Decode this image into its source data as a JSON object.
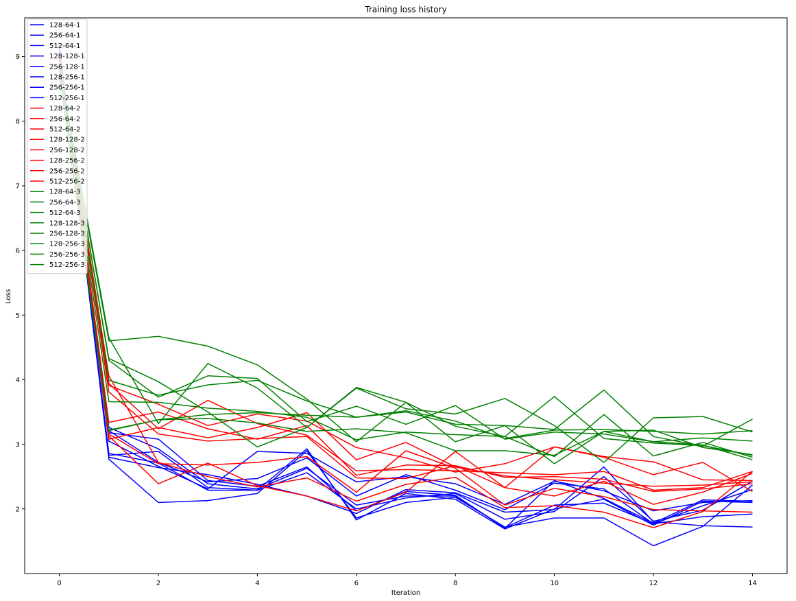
{
  "chart_data": {
    "type": "line",
    "title": "Training loss history",
    "xlabel": "Iteration",
    "ylabel": "Loss",
    "xlim": [
      -0.7,
      14.7
    ],
    "ylim": [
      1.0,
      9.6
    ],
    "x_ticks": [
      0,
      2,
      4,
      6,
      8,
      10,
      12,
      14
    ],
    "y_ticks": [
      2,
      3,
      4,
      5,
      6,
      7,
      8,
      9
    ],
    "grid": false,
    "legend_position": "top-left",
    "x": [
      0,
      1,
      2,
      3,
      4,
      5,
      6,
      7,
      8,
      9,
      10,
      11,
      12,
      13,
      14
    ],
    "colors": {
      "blue": "#0000ff",
      "red": "#ff0000",
      "green": "#008000"
    },
    "series": [
      {
        "name": "128-64-1",
        "color": "blue",
        "values": [
          9.18,
          2.77,
          2.1,
          2.13,
          2.24,
          2.9,
          1.86,
          2.1,
          2.18,
          1.72,
          1.86,
          1.86,
          1.43,
          1.73,
          2.37
        ]
      },
      {
        "name": "256-64-1",
        "color": "blue",
        "values": [
          9.16,
          2.83,
          2.89,
          2.33,
          2.29,
          2.93,
          1.83,
          2.24,
          2.15,
          1.69,
          2.0,
          2.15,
          1.75,
          2.12,
          2.1
        ]
      },
      {
        "name": "512-64-1",
        "color": "blue",
        "values": [
          9.14,
          2.8,
          2.64,
          2.53,
          2.38,
          2.2,
          1.93,
          2.3,
          2.25,
          1.95,
          1.99,
          2.65,
          1.8,
          1.74,
          1.72
        ]
      },
      {
        "name": "128-128-1",
        "color": "blue",
        "values": [
          9.12,
          2.86,
          2.71,
          2.29,
          2.29,
          2.56,
          2.0,
          2.17,
          2.24,
          1.84,
          1.96,
          2.5,
          1.81,
          1.98,
          2.43
        ]
      },
      {
        "name": "256-128-1",
        "color": "blue",
        "values": [
          9.1,
          3.05,
          2.66,
          2.31,
          2.89,
          2.86,
          2.42,
          2.5,
          2.39,
          2.07,
          2.43,
          2.28,
          1.97,
          2.1,
          2.13
        ]
      },
      {
        "name": "128-256-1",
        "color": "blue",
        "values": [
          9.08,
          3.21,
          2.72,
          2.42,
          2.47,
          2.79,
          2.2,
          2.53,
          2.29,
          1.99,
          2.4,
          2.31,
          1.77,
          2.05,
          2.3
        ]
      },
      {
        "name": "256-256-1",
        "color": "blue",
        "values": [
          9.06,
          3.26,
          2.93,
          2.39,
          2.31,
          2.63,
          2.06,
          2.2,
          2.2,
          1.71,
          2.06,
          2.09,
          1.77,
          1.88,
          1.92
        ]
      },
      {
        "name": "512-256-1",
        "color": "blue",
        "values": [
          9.04,
          3.18,
          3.08,
          2.44,
          2.35,
          2.65,
          1.97,
          2.27,
          2.21,
          1.7,
          2.44,
          2.16,
          1.78,
          2.14,
          2.12
        ]
      },
      {
        "name": "128-64-2",
        "color": "red",
        "values": [
          9.02,
          3.08,
          3.26,
          3.1,
          3.26,
          3.49,
          2.76,
          3.03,
          2.65,
          2.51,
          2.45,
          2.4,
          2.35,
          2.37,
          2.42
        ]
      },
      {
        "name": "256-64-2",
        "color": "red",
        "values": [
          9.0,
          3.34,
          3.5,
          3.24,
          3.08,
          3.29,
          2.52,
          2.68,
          2.67,
          2.33,
          2.96,
          2.81,
          2.73,
          2.45,
          2.44
        ]
      },
      {
        "name": "512-64-2",
        "color": "red",
        "values": [
          8.98,
          3.16,
          2.7,
          2.68,
          2.72,
          2.81,
          2.26,
          2.9,
          2.63,
          2.06,
          2.32,
          2.19,
          1.99,
          1.97,
          1.95
        ]
      },
      {
        "name": "128-128-2",
        "color": "red",
        "values": [
          8.96,
          3.13,
          2.39,
          2.71,
          2.36,
          2.2,
          1.97,
          2.26,
          2.89,
          2.33,
          2.2,
          2.43,
          2.07,
          2.26,
          2.55
        ]
      },
      {
        "name": "256-128-2",
        "color": "red",
        "values": [
          8.94,
          3.94,
          3.24,
          3.68,
          3.32,
          3.14,
          2.59,
          2.61,
          2.59,
          2.56,
          2.53,
          2.58,
          2.29,
          2.33,
          2.58
        ]
      },
      {
        "name": "128-256-2",
        "color": "red",
        "values": [
          8.92,
          3.81,
          3.16,
          3.05,
          3.09,
          3.12,
          2.48,
          2.47,
          2.67,
          2.49,
          2.5,
          2.46,
          2.27,
          2.31,
          2.39
        ]
      },
      {
        "name": "256-256-2",
        "color": "red",
        "values": [
          8.9,
          3.91,
          3.62,
          3.29,
          3.47,
          3.36,
          2.95,
          2.79,
          2.57,
          2.7,
          2.96,
          2.8,
          2.53,
          2.72,
          2.27
        ]
      },
      {
        "name": "512-256-2",
        "color": "red",
        "values": [
          8.88,
          4.06,
          2.72,
          2.5,
          2.34,
          2.48,
          2.12,
          2.38,
          2.49,
          2.02,
          2.05,
          1.95,
          1.71,
          1.96,
          2.58
        ]
      },
      {
        "name": "128-64-3",
        "color": "green",
        "values": [
          8.86,
          4.3,
          3.73,
          4.06,
          4.02,
          3.35,
          3.59,
          3.31,
          3.6,
          3.08,
          3.19,
          3.16,
          3.04,
          2.99,
          2.76
        ]
      },
      {
        "name": "256-64-3",
        "color": "green",
        "values": [
          8.84,
          4.65,
          3.32,
          4.25,
          3.87,
          3.26,
          3.87,
          3.55,
          3.47,
          3.71,
          3.29,
          2.72,
          3.41,
          3.43,
          3.19
        ]
      },
      {
        "name": "512-64-3",
        "color": "green",
        "values": [
          8.82,
          3.66,
          3.65,
          3.56,
          3.51,
          3.42,
          3.07,
          3.19,
          3.15,
          3.12,
          2.81,
          3.46,
          2.82,
          3.03,
          2.8
        ]
      },
      {
        "name": "128-128-3",
        "color": "green",
        "values": [
          8.8,
          4.6,
          4.67,
          4.52,
          4.23,
          3.7,
          3.04,
          3.65,
          3.28,
          3.12,
          3.74,
          3.09,
          3.02,
          2.98,
          2.83
        ]
      },
      {
        "name": "256-128-3",
        "color": "green",
        "values": [
          8.78,
          4.33,
          3.97,
          3.5,
          2.96,
          3.26,
          3.88,
          3.65,
          3.04,
          3.29,
          3.23,
          3.84,
          3.12,
          2.97,
          3.39
        ]
      },
      {
        "name": "128-256-3",
        "color": "green",
        "values": [
          8.76,
          3.99,
          3.76,
          3.92,
          3.99,
          3.67,
          3.42,
          3.52,
          3.36,
          3.09,
          3.22,
          3.23,
          3.2,
          3.16,
          3.21
        ]
      },
      {
        "name": "256-256-3",
        "color": "green",
        "values": [
          8.74,
          3.22,
          3.38,
          3.4,
          3.33,
          3.2,
          3.24,
          3.18,
          2.9,
          2.9,
          2.83,
          3.2,
          3.22,
          2.95,
          2.84
        ]
      },
      {
        "name": "512-256-3",
        "color": "green",
        "values": [
          8.72,
          3.21,
          3.38,
          3.46,
          3.49,
          3.45,
          3.42,
          3.5,
          3.31,
          3.29,
          2.7,
          3.2,
          3.04,
          3.1,
          3.05
        ]
      }
    ]
  }
}
